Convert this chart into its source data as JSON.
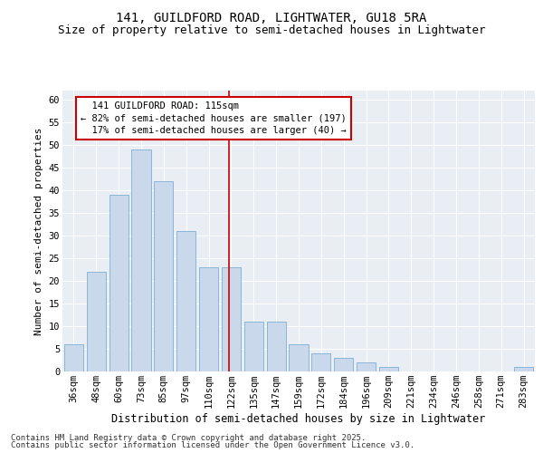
{
  "title1": "141, GUILDFORD ROAD, LIGHTWATER, GU18 5RA",
  "title2": "Size of property relative to semi-detached houses in Lightwater",
  "xlabel": "Distribution of semi-detached houses by size in Lightwater",
  "ylabel": "Number of semi-detached properties",
  "categories": [
    "36sqm",
    "48sqm",
    "60sqm",
    "73sqm",
    "85sqm",
    "97sqm",
    "110sqm",
    "122sqm",
    "135sqm",
    "147sqm",
    "159sqm",
    "172sqm",
    "184sqm",
    "196sqm",
    "209sqm",
    "221sqm",
    "234sqm",
    "246sqm",
    "258sqm",
    "271sqm",
    "283sqm"
  ],
  "values": [
    6,
    22,
    39,
    49,
    42,
    31,
    23,
    23,
    11,
    11,
    6,
    4,
    3,
    2,
    1,
    0,
    0,
    0,
    0,
    0,
    1
  ],
  "bar_color": "#c9d9eb",
  "bar_edge_color": "#7bafd4",
  "property_label": "141 GUILDFORD ROAD: 115sqm",
  "pct_smaller": 82,
  "n_smaller": 197,
  "pct_larger": 17,
  "n_larger": 40,
  "ylim": [
    0,
    62
  ],
  "yticks": [
    0,
    5,
    10,
    15,
    20,
    25,
    30,
    35,
    40,
    45,
    50,
    55,
    60
  ],
  "annotation_box_color": "#ffffff",
  "annotation_box_edge_color": "#cc0000",
  "vline_color": "#cc0000",
  "footer1": "Contains HM Land Registry data © Crown copyright and database right 2025.",
  "footer2": "Contains public sector information licensed under the Open Government Licence v3.0.",
  "bg_color": "#e8eef4",
  "title1_fontsize": 10,
  "title2_fontsize": 9,
  "xlabel_fontsize": 8.5,
  "ylabel_fontsize": 8,
  "tick_fontsize": 7.5,
  "annotation_fontsize": 7.5,
  "footer_fontsize": 6.5
}
